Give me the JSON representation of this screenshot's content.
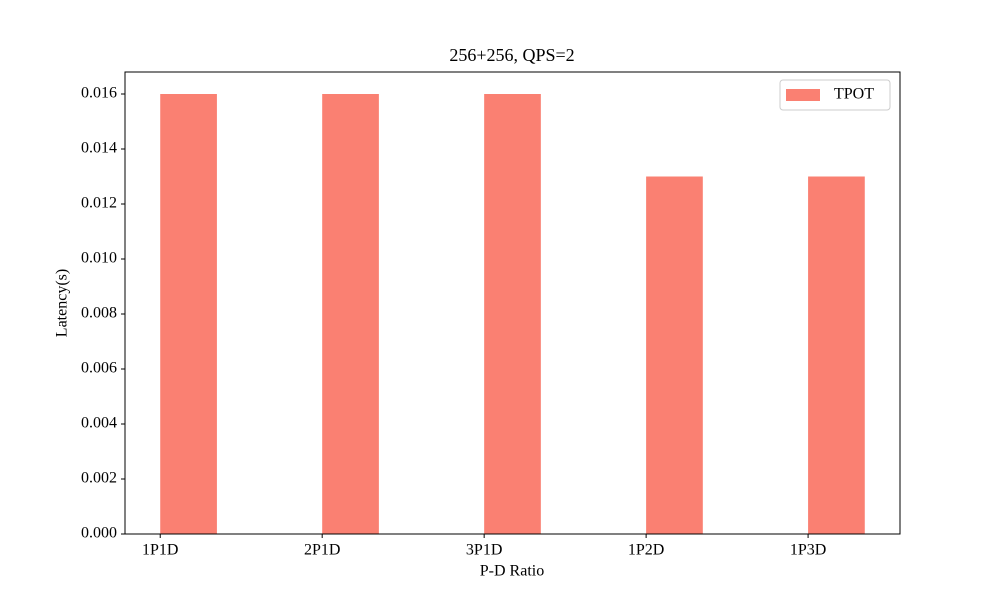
{
  "chart_data": {
    "type": "bar",
    "title": "256+256, QPS=2",
    "x_label": "P-D Ratio",
    "y_label": "Latency(s)",
    "categories": [
      "1P1D",
      "2P1D",
      "3P1D",
      "1P2D",
      "1P3D"
    ],
    "series": [
      {
        "name": "TPOT",
        "color": "#fa8072",
        "values": [
          0.016,
          0.016,
          0.016,
          0.013,
          0.013
        ]
      }
    ],
    "ylim": [
      0,
      0.0168
    ],
    "yticks": [
      {
        "value": 0,
        "label": "0.000"
      },
      {
        "value": 0.002,
        "label": "0.002"
      },
      {
        "value": 0.004,
        "label": "0.004"
      },
      {
        "value": 0.006,
        "label": "0.006"
      },
      {
        "value": 0.008,
        "label": "0.008"
      },
      {
        "value": 0.01,
        "label": "0.010"
      },
      {
        "value": 0.012,
        "label": "0.012"
      },
      {
        "value": 0.014,
        "label": "0.014"
      },
      {
        "value": 0.016,
        "label": "0.016"
      }
    ],
    "legend": "upper right",
    "grid": false
  }
}
